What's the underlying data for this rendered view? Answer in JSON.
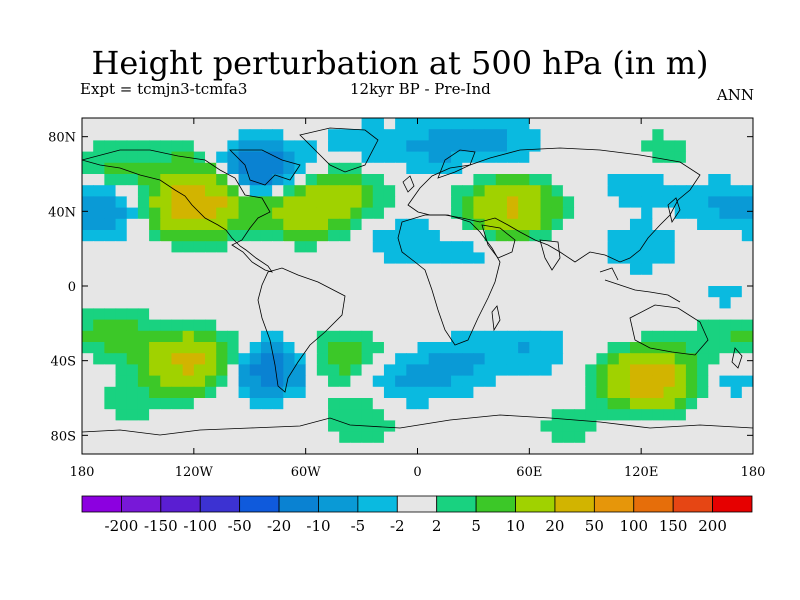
{
  "title": "Height perturbation at 500 hPa (in m)",
  "expt_label": "Expt = tcmjn3-tcmfa3",
  "period_label": "12kyr BP - Pre-Ind",
  "season_label": "ANN",
  "axes": {
    "lat_ticks": [
      "80N",
      "40N",
      "0",
      "40S",
      "80S"
    ],
    "lat_values": [
      80,
      40,
      0,
      -40,
      -80
    ],
    "lon_ticks": [
      "180",
      "120W",
      "60W",
      "0",
      "60E",
      "120E",
      "180"
    ],
    "lon_values": [
      -180,
      -120,
      -60,
      0,
      60,
      120,
      180
    ],
    "lat_range": [
      -90,
      90
    ],
    "lon_range": [
      -180,
      180
    ]
  },
  "colorbar": {
    "colors": [
      "#8c00e0",
      "#7818d8",
      "#5a1ed2",
      "#3c32d2",
      "#0f5adc",
      "#0a82d2",
      "#0a9ad6",
      "#0abae0",
      "#e6e6e6",
      "#19d280",
      "#3cc828",
      "#a0d200",
      "#d2b400",
      "#e6960a",
      "#e66e0a",
      "#e64614",
      "#e60000"
    ],
    "labels": [
      "-200",
      "-150",
      "-100",
      "-50",
      "-20",
      "-10",
      "-5",
      "-2",
      "2",
      "5",
      "10",
      "20",
      "50",
      "100",
      "150",
      "200"
    ],
    "thresholds": [
      -200,
      -150,
      -100,
      -50,
      -20,
      -10,
      -5,
      -2,
      2,
      5,
      10,
      20,
      50,
      100,
      150,
      200
    ]
  },
  "field": {
    "background_value": 0,
    "anomalies": [
      {
        "lon": -165,
        "lat": 42,
        "value": -8
      },
      {
        "lon": -162,
        "lat": 62,
        "value": 6
      },
      {
        "lon": -120,
        "lat": 42,
        "value": 28
      },
      {
        "lon": -120,
        "lat": 60,
        "value": 8
      },
      {
        "lon": -85,
        "lat": 62,
        "value": -18
      },
      {
        "lon": -95,
        "lat": 45,
        "value": 4
      },
      {
        "lon": -60,
        "lat": 40,
        "value": 14
      },
      {
        "lon": -40,
        "lat": 50,
        "value": 10
      },
      {
        "lon": -30,
        "lat": 75,
        "value": -4
      },
      {
        "lon": 10,
        "lat": 75,
        "value": -6
      },
      {
        "lon": 45,
        "lat": 78,
        "value": -5
      },
      {
        "lon": -10,
        "lat": 25,
        "value": -4
      },
      {
        "lon": 30,
        "lat": 20,
        "value": -3
      },
      {
        "lon": 50,
        "lat": 42,
        "value": 22
      },
      {
        "lon": 120,
        "lat": 55,
        "value": -5
      },
      {
        "lon": 130,
        "lat": 70,
        "value": 4
      },
      {
        "lon": 165,
        "lat": 45,
        "value": -5
      },
      {
        "lon": 120,
        "lat": 20,
        "value": -4
      },
      {
        "lon": 165,
        "lat": -8,
        "value": -3
      },
      {
        "lon": 165,
        "lat": -28,
        "value": 5
      },
      {
        "lon": -162,
        "lat": -25,
        "value": 6
      },
      {
        "lon": -122,
        "lat": -40,
        "value": 24
      },
      {
        "lon": -155,
        "lat": -60,
        "value": 4
      },
      {
        "lon": -80,
        "lat": -45,
        "value": -14
      },
      {
        "lon": -40,
        "lat": -38,
        "value": 8
      },
      {
        "lon": 20,
        "lat": -42,
        "value": -6
      },
      {
        "lon": 60,
        "lat": -35,
        "value": -5
      },
      {
        "lon": 125,
        "lat": -50,
        "value": 30
      },
      {
        "lon": 170,
        "lat": -50,
        "value": -4
      },
      {
        "lon": -30,
        "lat": -70,
        "value": 5
      },
      {
        "lon": -10,
        "lat": -52,
        "value": -6
      },
      {
        "lon": 80,
        "lat": -75,
        "value": 3
      }
    ]
  }
}
